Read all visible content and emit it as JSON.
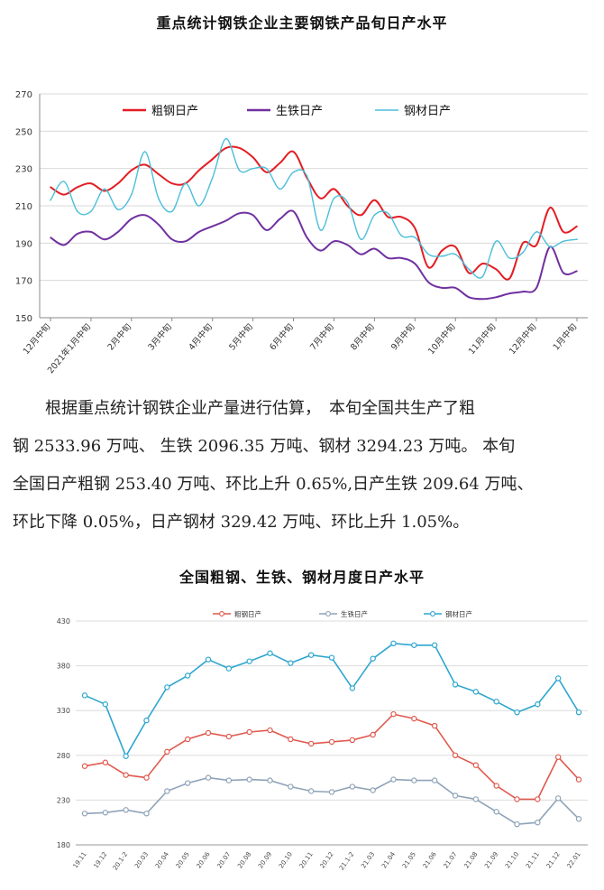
{
  "chart_data": [
    {
      "type": "line",
      "title": "重点统计钢铁企业主要钢铁产品旬日产水平",
      "ylim": [
        150,
        270
      ],
      "yticks": [
        150,
        170,
        190,
        210,
        230,
        250,
        270
      ],
      "xticks": [
        "12月中旬",
        "2021年1月中旬",
        "2月中旬",
        "3月中旬",
        "4月中旬",
        "5月中旬",
        "6月中旬",
        "7月中旬",
        "8月中旬",
        "9月中旬",
        "10月中旬",
        "11月中旬",
        "12月中旬",
        "1月中旬"
      ],
      "legend_position": "top",
      "grid": "horizontal",
      "x": [
        0,
        1,
        2,
        3,
        4,
        5,
        6,
        7,
        8,
        9,
        10,
        11,
        12,
        13,
        14,
        15,
        16,
        17,
        18,
        19,
        20,
        21,
        22,
        23,
        24,
        25,
        26,
        27,
        28,
        29,
        30,
        31,
        32,
        33,
        34,
        35,
        36,
        37,
        38,
        39
      ],
      "series": [
        {
          "name": "粗钢日产",
          "color": "#e31e24",
          "values": [
            220,
            216,
            220,
            222,
            218,
            222,
            229,
            232,
            227,
            222,
            222,
            229,
            235,
            241,
            241,
            236,
            228,
            233,
            239,
            225,
            214,
            219,
            210,
            205,
            213,
            204,
            204,
            198,
            177,
            186,
            188,
            174,
            179,
            176,
            171,
            190,
            189,
            209,
            196,
            199
          ]
        },
        {
          "name": "生铁日产",
          "color": "#7030a0",
          "values": [
            193,
            189,
            195,
            196,
            192,
            196,
            203,
            205,
            200,
            192,
            191,
            196,
            199,
            202,
            206,
            205,
            197,
            203,
            207,
            193,
            186,
            191,
            189,
            184,
            187,
            182,
            182,
            179,
            169,
            166,
            166,
            161,
            160,
            161,
            163,
            164,
            166,
            188,
            174,
            175
          ]
        },
        {
          "name": "钢材日产",
          "color": "#4bbfd9",
          "values": [
            213,
            223,
            207,
            207,
            219,
            208,
            216,
            239,
            214,
            207,
            222,
            210,
            225,
            246,
            229,
            230,
            230,
            219,
            228,
            226,
            197,
            214,
            212,
            192,
            205,
            206,
            194,
            193,
            184,
            183,
            184,
            176,
            172,
            191,
            182,
            185,
            196,
            188,
            191,
            192
          ]
        }
      ]
    },
    {
      "type": "line",
      "title": "全国粗钢、生铁、钢材月度日产水平",
      "ylim": [
        180,
        430
      ],
      "yticks": [
        180,
        230,
        280,
        330,
        380,
        430
      ],
      "categories": [
        "19.11",
        "19.12",
        "20.1-2",
        "20.03",
        "20.04",
        "20.05",
        "20.06",
        "20.07",
        "20.08",
        "20.09",
        "20.10",
        "20.11",
        "20.12",
        "21.1-2",
        "21.03",
        "21.04",
        "21.05",
        "21.06",
        "21.07",
        "21.08",
        "21.09",
        "21.10",
        "21.11",
        "21.12",
        "22.01"
      ],
      "legend_position": "top",
      "grid": "horizontal",
      "series": [
        {
          "name": "粗钢日产",
          "color": "#e05a4f",
          "values": [
            268,
            272,
            258,
            255,
            284,
            298,
            305,
            301,
            306,
            308,
            298,
            293,
            295,
            297,
            303,
            326,
            321,
            313,
            280,
            269,
            246,
            231,
            231,
            278,
            253
          ]
        },
        {
          "name": "生铁日产",
          "color": "#8fa3b8",
          "values": [
            215,
            216,
            219,
            215,
            240,
            249,
            255,
            252,
            253,
            252,
            245,
            240,
            239,
            245,
            241,
            253,
            252,
            252,
            235,
            231,
            217,
            203,
            205,
            232,
            209
          ]
        },
        {
          "name": "钢材日产",
          "color": "#2ea6cf",
          "values": [
            347,
            337,
            279,
            319,
            356,
            369,
            387,
            377,
            385,
            394,
            383,
            392,
            389,
            355,
            388,
            405,
            403,
            403,
            359,
            351,
            340,
            328,
            337,
            366,
            328
          ]
        }
      ]
    }
  ],
  "text": {
    "title1": "重点统计钢铁企业主要钢铁产品旬日产水平",
    "title2": "全国粗钢、生铁、钢材月度日产水平",
    "paragraph_lines": [
      "　　根据重点统计钢铁企业产量进行估算，　本旬全国共生产了粗",
      "钢 2533.96 万吨、 生铁 2096.35 万吨、钢材 3294.23 万吨。 本旬",
      "全国日产粗钢 253.40 万吨、环比上升 0.65%,日产生铁 209.64 万吨、",
      "环比下降 0.05%，日产钢材 329.42 万吨、环比上升 1.05%。"
    ]
  }
}
